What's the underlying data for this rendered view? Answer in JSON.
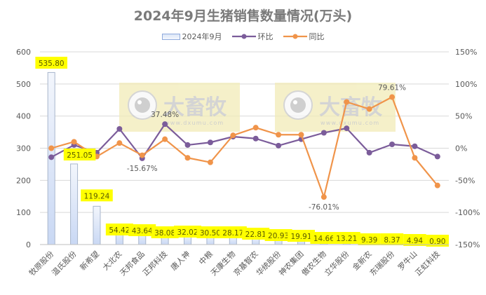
{
  "chart_data": {
    "type": "bar",
    "title": "2024年9月生猪销售数量情况(万头)",
    "xlabel": "",
    "ylabel": "",
    "ylim": [
      0,
      600
    ],
    "y_ticks": [
      0,
      100,
      200,
      300,
      400,
      500,
      600
    ],
    "y2lim": [
      -150,
      150
    ],
    "y2_ticks": [
      "-150%",
      "-100%",
      "-50%",
      "0%",
      "50%",
      "100%",
      "150%"
    ],
    "grid": true,
    "legend_position": "top",
    "categories": [
      "牧原股份",
      "温氏股份",
      "新希望",
      "大北农",
      "天邦食品",
      "正邦科技",
      "唐人神",
      "中粮",
      "天康生物",
      "京基智农",
      "华统股份",
      "神农集团",
      "傲农生物",
      "立华股份",
      "金新农",
      "东瑞股份",
      "罗牛山",
      "正虹科技"
    ],
    "series": [
      {
        "name": "2024年9月",
        "type": "bar",
        "axis": "left",
        "values": [
          535.8,
          251.05,
          119.24,
          54.42,
          43.64,
          38.08,
          32.02,
          30.5,
          28.17,
          22.81,
          20.93,
          19.91,
          14.66,
          13.21,
          9.39,
          8.37,
          4.94,
          0.9
        ],
        "labels": [
          "535.80",
          "251.05",
          "119.24",
          "54.42",
          "43.64",
          "38.08",
          "32.02",
          "30.50",
          "28.17",
          "22.81",
          "20.93",
          "19.91",
          "14.66",
          "13.21",
          "9.39",
          "8.37",
          "4.94",
          "0.90"
        ],
        "color": "#dae3f3"
      },
      {
        "name": "环比",
        "type": "line",
        "axis": "right",
        "unit": "%",
        "values": [
          -14,
          5,
          -7,
          30,
          -15.67,
          37.48,
          5,
          9,
          18,
          15,
          4,
          14,
          24,
          31,
          -7,
          6,
          3,
          -13
        ],
        "color": "#7b5c9a"
      },
      {
        "name": "同比",
        "type": "line",
        "axis": "right",
        "unit": "%",
        "values": [
          0,
          10,
          -13,
          8,
          -11,
          14,
          -15,
          -22,
          20,
          32,
          21,
          21,
          -76.01,
          72,
          61,
          79.61,
          -15,
          -58
        ],
        "color": "#f0944a"
      }
    ],
    "annotations": [
      {
        "series": "环比",
        "category": "天邦食品",
        "text": "-15.67%"
      },
      {
        "series": "环比",
        "category": "正邦科技",
        "text": "37.48%"
      },
      {
        "series": "同比",
        "category": "傲农生物",
        "text": "-76.01%"
      },
      {
        "series": "同比",
        "category": "东瑞股份",
        "text": "79.61%"
      }
    ]
  },
  "watermark": {
    "brand": "大畜牧",
    "url": "www.dxumu.com",
    "count": 2
  },
  "colors": {
    "bar_fill_top": "#f3f6fc",
    "bar_fill_bottom": "#c9d8f4",
    "bar_border": "#a8b6cc",
    "line_mom": "#7b5c9a",
    "line_yoy": "#f0944a",
    "label_bg": "#ffff00",
    "grid": "#d9d9d9",
    "watermark_bg": "#f2ecb8"
  }
}
